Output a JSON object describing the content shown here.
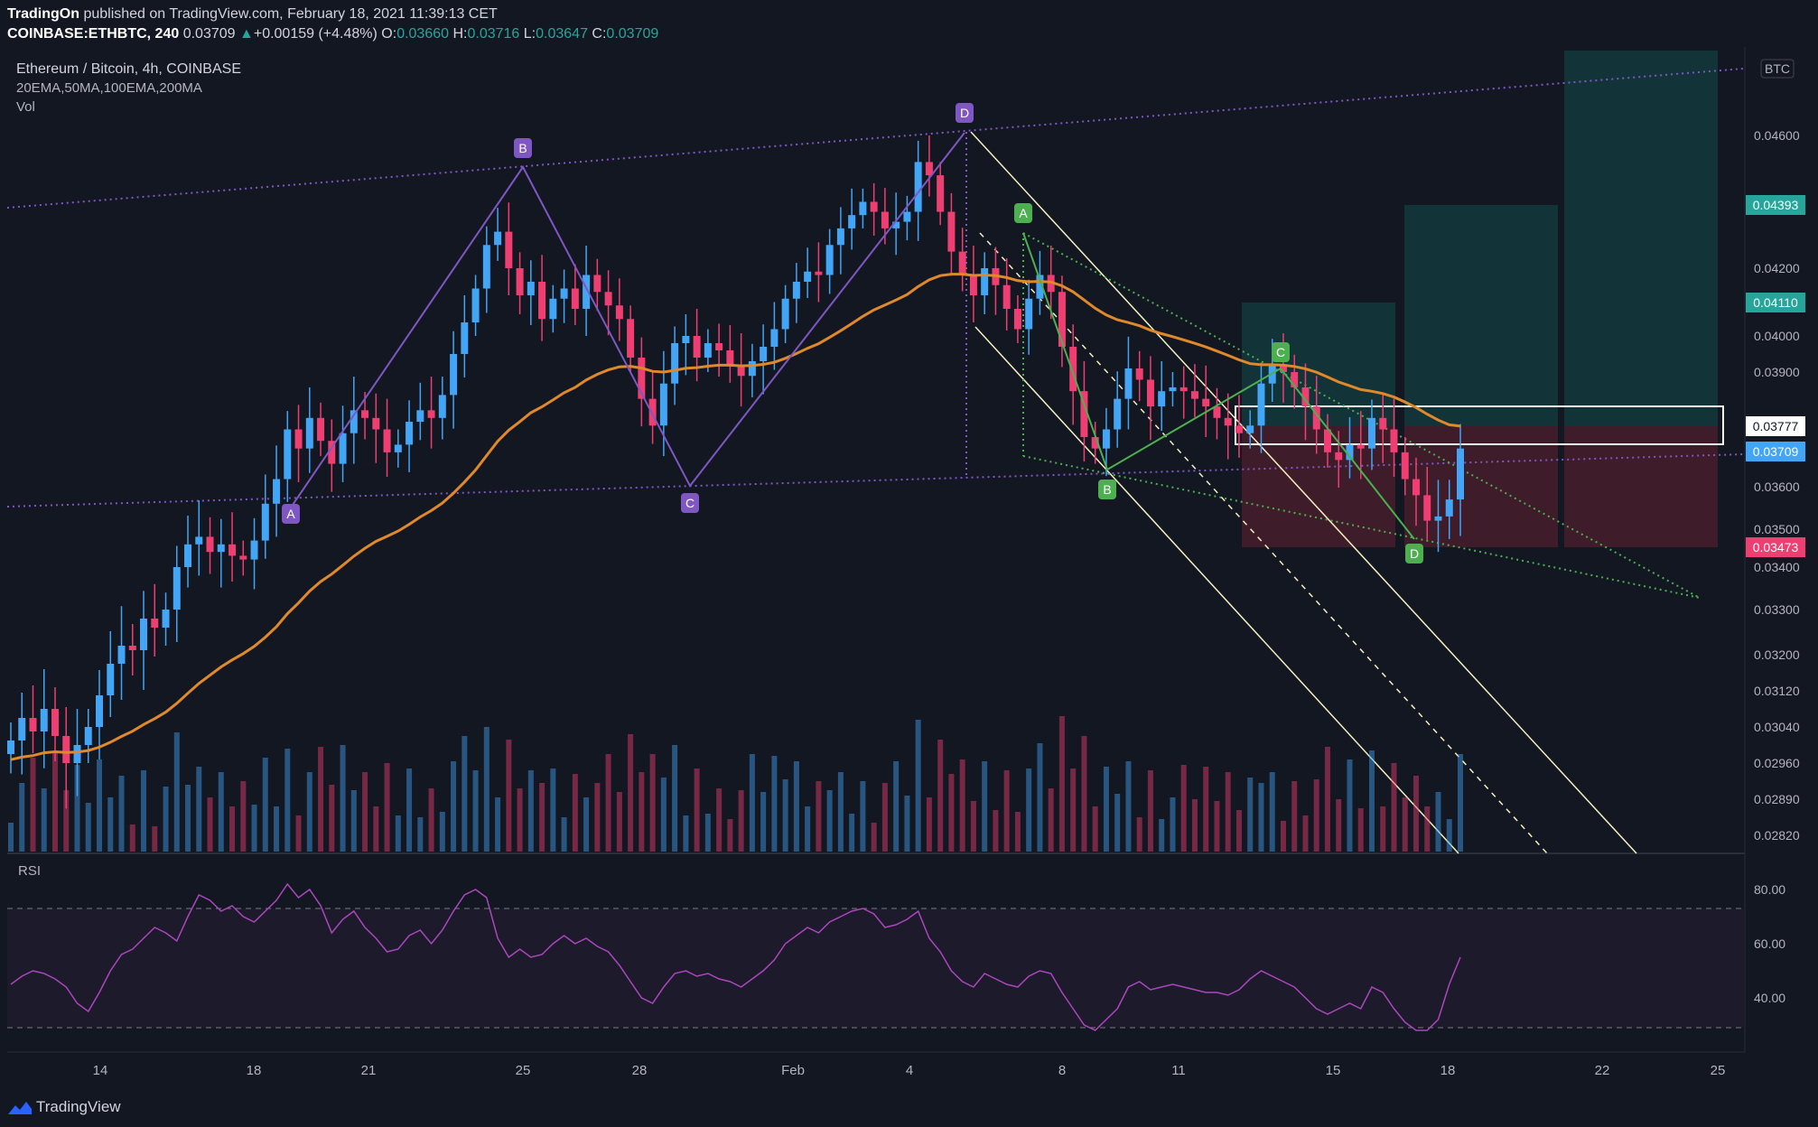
{
  "header": {
    "publisher": "TradingOn",
    "published_text": " published on TradingView.com, February 18, 2021 11:39:13 CET",
    "symbol_line": "COINBASE:ETHBTC, 240",
    "last": "0.03709",
    "change": "+0.00159 (+4.48%)",
    "open_label": "O:",
    "open": "0.03660",
    "high_label": "H:",
    "high": "0.03716",
    "low_label": "L:",
    "low": "0.03647",
    "close_label": "C:",
    "close": "0.03709"
  },
  "legend": {
    "title": "Ethereum / Bitcoin, 4h, COINBASE",
    "indicators": "20EMA,50MA,100EMA,200MA",
    "volume": "Vol",
    "rsi": "RSI"
  },
  "footer": {
    "brand": "TradingView"
  },
  "colors": {
    "background": "#131722",
    "up": "#42a5f5",
    "down": "#ef3f72",
    "ema": "#e0892a",
    "rsi": "#ab47bc",
    "pattern_purple": "#7e57c2",
    "pattern_green": "#4caf50",
    "channel": "#f5f0c0"
  },
  "chart_data": {
    "type": "candlestick",
    "currency": "BTC",
    "x_ticks": [
      "14",
      "18",
      "21",
      "25",
      "28",
      "Feb",
      "4",
      "8",
      "11",
      "15",
      "18",
      "22",
      "25"
    ],
    "y_ticks": [
      "0.04600",
      "0.04200",
      "0.04000",
      "0.03900",
      "0.03600",
      "0.03500",
      "0.03400",
      "0.03300",
      "0.03200",
      "0.03120",
      "0.03040",
      "0.02960",
      "0.02890",
      "0.02820"
    ],
    "y_range": [
      0.0282,
      0.0482
    ],
    "price_labels": [
      {
        "value": "0.04393",
        "color": "#26a69a"
      },
      {
        "value": "0.04110",
        "color": "#26a69a"
      },
      {
        "value": "0.03777",
        "color": "#ffffff"
      },
      {
        "value": "0.03709",
        "color": "#42a5f5"
      },
      {
        "value": "0.03473",
        "color": "#ef3f72"
      }
    ],
    "harmonic_patterns": [
      {
        "name": "purple-pattern",
        "points": [
          "A",
          "B",
          "C",
          "D"
        ],
        "values": [
          0.0359,
          0.0452,
          0.0362,
          0.0463
        ]
      },
      {
        "name": "green-pattern",
        "points": [
          "A",
          "B",
          "C",
          "D"
        ],
        "values": [
          0.043,
          0.0367,
          0.0393,
          0.035
        ]
      }
    ],
    "rsi_ticks": [
      "80.00",
      "60.00",
      "40.00"
    ],
    "rsi_range": [
      20,
      90
    ],
    "rsi_bands": [
      70,
      30
    ],
    "close_series": [
      0.0301,
      0.0306,
      0.0303,
      0.0308,
      0.0302,
      0.0296,
      0.03,
      0.0304,
      0.0311,
      0.0318,
      0.0322,
      0.0321,
      0.0328,
      0.0326,
      0.033,
      0.034,
      0.0346,
      0.0348,
      0.0344,
      0.0346,
      0.0343,
      0.0342,
      0.0347,
      0.0356,
      0.0362,
      0.0375,
      0.037,
      0.0378,
      0.0372,
      0.0366,
      0.0374,
      0.038,
      0.0378,
      0.0375,
      0.0369,
      0.0371,
      0.0377,
      0.038,
      0.0378,
      0.0384,
      0.0395,
      0.0404,
      0.0414,
      0.0427,
      0.0431,
      0.042,
      0.0412,
      0.0416,
      0.0405,
      0.0411,
      0.0414,
      0.0408,
      0.0418,
      0.0413,
      0.0409,
      0.0405,
      0.0394,
      0.0383,
      0.0376,
      0.0387,
      0.0398,
      0.04,
      0.0394,
      0.0398,
      0.0396,
      0.0392,
      0.0389,
      0.0393,
      0.0397,
      0.0402,
      0.0411,
      0.0416,
      0.0419,
      0.0418,
      0.0427,
      0.0432,
      0.0436,
      0.044,
      0.0437,
      0.0432,
      0.0434,
      0.0437,
      0.0452,
      0.0448,
      0.0437,
      0.0425,
      0.0418,
      0.0412,
      0.042,
      0.0415,
      0.0408,
      0.0402,
      0.0411,
      0.0418,
      0.0413,
      0.0397,
      0.0385,
      0.0373,
      0.037,
      0.0375,
      0.0383,
      0.0391,
      0.0388,
      0.0381,
      0.0385,
      0.0386,
      0.0385,
      0.0383,
      0.0381,
      0.0378,
      0.0376,
      0.0374,
      0.0376,
      0.0387,
      0.0392,
      0.039,
      0.0386,
      0.0381,
      0.0375,
      0.0369,
      0.0367,
      0.0371,
      0.037,
      0.0378,
      0.0375,
      0.0369,
      0.0362,
      0.0358,
      0.0352,
      0.0353,
      0.0357,
      0.037
    ],
    "rsi_series": [
      45,
      48,
      50,
      49,
      47,
      44,
      38,
      35,
      42,
      50,
      56,
      58,
      62,
      66,
      64,
      61,
      70,
      78,
      76,
      72,
      74,
      70,
      68,
      72,
      76,
      82,
      77,
      80,
      74,
      64,
      69,
      72,
      66,
      62,
      57,
      58,
      63,
      65,
      60,
      65,
      72,
      78,
      80,
      77,
      62,
      55,
      58,
      55,
      56,
      60,
      63,
      60,
      62,
      59,
      57,
      52,
      46,
      40,
      38,
      44,
      49,
      50,
      48,
      49,
      47,
      46,
      44,
      47,
      50,
      54,
      60,
      63,
      66,
      64,
      68,
      70,
      72,
      73,
      71,
      66,
      67,
      69,
      72,
      62,
      57,
      50,
      46,
      44,
      49,
      47,
      45,
      44,
      48,
      50,
      49,
      42,
      36,
      30,
      28,
      32,
      36,
      44,
      46,
      43,
      44,
      45,
      44,
      43,
      42,
      42,
      41,
      43,
      47,
      50,
      48,
      46,
      44,
      40,
      36,
      34,
      36,
      38,
      36,
      44,
      42,
      36,
      31,
      28,
      28,
      32,
      45,
      55
    ]
  }
}
